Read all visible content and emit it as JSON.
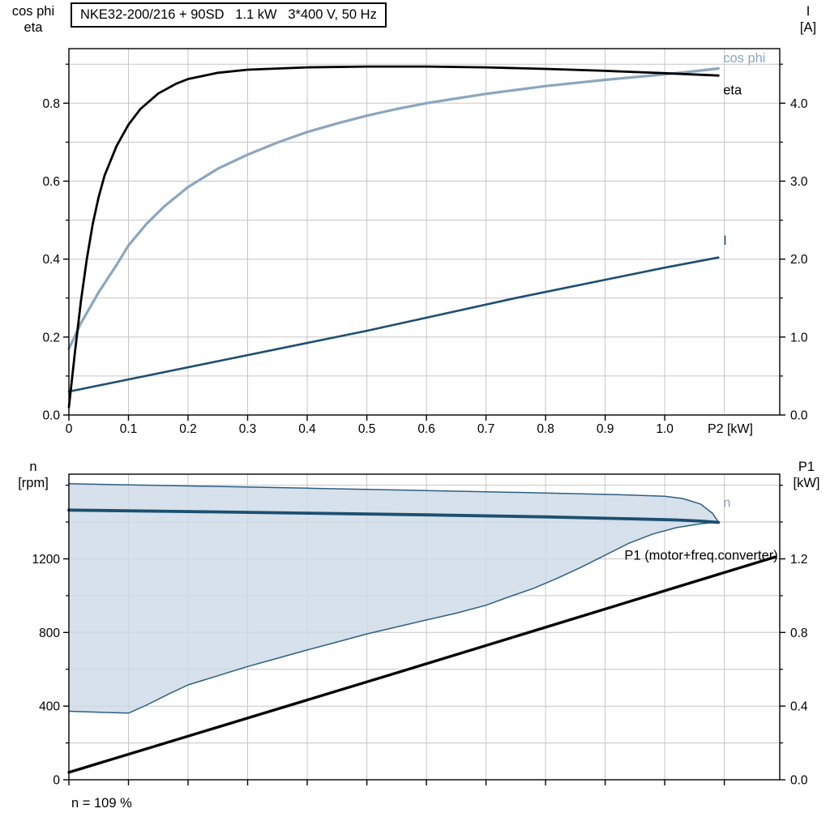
{
  "title_box": "NKE32-200/216 + 90SD   1.1 kW   3*400 V, 50 Hz",
  "footer_note": "n = 109 %",
  "axis_corner_labels": {
    "top_left": [
      "cos phi",
      "eta"
    ],
    "top_right": [
      "I",
      "[A]"
    ],
    "bottom_left": [
      "n",
      "[rpm]"
    ],
    "bottom_right": [
      "P1",
      "[kW]"
    ]
  },
  "colors": {
    "eta": "#000000",
    "cos_phi": "#8ba6be",
    "current": "#1d4f70",
    "band_fill": "#ccdae6",
    "band_edge": "#2d5f82",
    "p1": "#000000",
    "grid": "#c6c6c6",
    "frame": "#000000"
  },
  "chart_data": [
    {
      "type": "line",
      "position": "top",
      "title": "NKE32-200/216 + 90SD   1.1 kW   3*400 V, 50 Hz",
      "x_axis": {
        "label": "P2 [kW]",
        "min": 0,
        "max": 1.193,
        "grid_step": 0.1,
        "tick_values": [
          0,
          0.1,
          0.2,
          0.3,
          0.4,
          0.5,
          0.6,
          0.7,
          0.8,
          0.9,
          1.0
        ],
        "tick_labels": [
          "0",
          "0.1",
          "0.2",
          "0.3",
          "0.4",
          "0.5",
          "0.6",
          "0.7",
          "0.8",
          "0.9",
          "1.0"
        ]
      },
      "y_left": {
        "label": "cos phi / eta",
        "min": 0,
        "max": 0.94,
        "grid_step": 0.1,
        "minor_step": 0.1,
        "tick_values": [
          0,
          0.2,
          0.4,
          0.6,
          0.8
        ],
        "tick_labels": [
          "0.0",
          "0.2",
          "0.4",
          "0.6",
          "0.8"
        ]
      },
      "y_right": {
        "label": "I [A]",
        "min": 0,
        "max": 4.7,
        "minor_step": 0.5,
        "tick_values": [
          0,
          1,
          2,
          3,
          4
        ],
        "tick_labels": [
          "0.0",
          "1.0",
          "2.0",
          "3.0",
          "4.0"
        ]
      },
      "series": [
        {
          "name": "I",
          "axis": "right",
          "color_key": "current",
          "width": 2.6,
          "points": [
            [
              0,
              0.3
            ],
            [
              0.25,
              0.69
            ],
            [
              0.5,
              1.08
            ],
            [
              0.75,
              1.5
            ],
            [
              1.0,
              1.89
            ],
            [
              1.09,
              2.02
            ]
          ]
        },
        {
          "name": "cos phi",
          "axis": "left",
          "color_key": "cos_phi",
          "width": 3.2,
          "points": [
            [
              0,
              0.17
            ],
            [
              0.02,
              0.235
            ],
            [
              0.05,
              0.315
            ],
            [
              0.08,
              0.385
            ],
            [
              0.1,
              0.435
            ],
            [
              0.13,
              0.49
            ],
            [
              0.16,
              0.535
            ],
            [
              0.2,
              0.585
            ],
            [
              0.25,
              0.632
            ],
            [
              0.3,
              0.668
            ],
            [
              0.35,
              0.699
            ],
            [
              0.4,
              0.726
            ],
            [
              0.45,
              0.748
            ],
            [
              0.5,
              0.768
            ],
            [
              0.55,
              0.785
            ],
            [
              0.6,
              0.8
            ],
            [
              0.65,
              0.812
            ],
            [
              0.7,
              0.824
            ],
            [
              0.75,
              0.834
            ],
            [
              0.8,
              0.844
            ],
            [
              0.85,
              0.852
            ],
            [
              0.9,
              0.86
            ],
            [
              0.95,
              0.867
            ],
            [
              1.0,
              0.874
            ],
            [
              1.05,
              0.882
            ],
            [
              1.09,
              0.889
            ]
          ]
        },
        {
          "name": "eta",
          "axis": "left",
          "color_key": "eta",
          "width": 2.8,
          "points": [
            [
              0,
              0.02
            ],
            [
              0.01,
              0.16
            ],
            [
              0.02,
              0.29
            ],
            [
              0.03,
              0.4
            ],
            [
              0.04,
              0.49
            ],
            [
              0.05,
              0.56
            ],
            [
              0.06,
              0.615
            ],
            [
              0.08,
              0.69
            ],
            [
              0.1,
              0.745
            ],
            [
              0.12,
              0.785
            ],
            [
              0.15,
              0.825
            ],
            [
              0.18,
              0.85
            ],
            [
              0.2,
              0.862
            ],
            [
              0.25,
              0.878
            ],
            [
              0.3,
              0.886
            ],
            [
              0.4,
              0.892
            ],
            [
              0.5,
              0.894
            ],
            [
              0.6,
              0.894
            ],
            [
              0.7,
              0.892
            ],
            [
              0.8,
              0.888
            ],
            [
              0.9,
              0.883
            ],
            [
              1.0,
              0.877
            ],
            [
              1.09,
              0.871
            ]
          ]
        }
      ],
      "inline_labels": [
        {
          "text": "cos phi",
          "x": 1.098,
          "y": 0.905,
          "color_key": "cos_phi",
          "anchor": "start"
        },
        {
          "text": "eta",
          "x": 1.098,
          "y": 0.822,
          "color_key": "eta",
          "anchor": "start"
        },
        {
          "text": "I",
          "x": 1.098,
          "y": 0.437,
          "color_key": "current",
          "anchor": "start"
        }
      ]
    },
    {
      "type": "line",
      "position": "bottom",
      "title": "",
      "x_axis": {
        "label": "",
        "min": 0,
        "max": 1.193,
        "grid_step": 0.1,
        "tick_values": [
          0,
          0.1,
          0.2,
          0.3,
          0.4,
          0.5,
          0.6,
          0.7,
          0.8,
          0.9,
          1.0,
          1.1
        ],
        "tick_labels": []
      },
      "y_left": {
        "label": "n [rpm]",
        "min": 0,
        "max": 1660,
        "grid_step": 200,
        "minor_step": 200,
        "tick_values": [
          0,
          400,
          800,
          1200
        ],
        "tick_labels": [
          "0",
          "400",
          "800",
          "1200"
        ]
      },
      "y_right": {
        "label": "P1 [kW]",
        "min": 0,
        "max": 1.66,
        "minor_step": 0.2,
        "tick_values": [
          0,
          0.4,
          0.8,
          1.2
        ],
        "tick_labels": [
          "0.0",
          "0.4",
          "0.8",
          "1.2"
        ]
      },
      "band": {
        "name": "speed-control-range",
        "upper": [
          [
            0,
            1608
          ],
          [
            0.2,
            1596
          ],
          [
            0.4,
            1584
          ],
          [
            0.6,
            1571
          ],
          [
            0.8,
            1558
          ],
          [
            0.92,
            1549
          ],
          [
            1.0,
            1540
          ],
          [
            1.03,
            1528
          ],
          [
            1.06,
            1498
          ],
          [
            1.08,
            1448
          ],
          [
            1.09,
            1400
          ]
        ],
        "lower": [
          [
            0,
            372
          ],
          [
            0.1,
            362
          ],
          [
            0.13,
            405
          ],
          [
            0.17,
            470
          ],
          [
            0.2,
            515
          ],
          [
            0.25,
            565
          ],
          [
            0.3,
            615
          ],
          [
            0.35,
            660
          ],
          [
            0.4,
            705
          ],
          [
            0.45,
            748
          ],
          [
            0.5,
            792
          ],
          [
            0.55,
            830
          ],
          [
            0.6,
            868
          ],
          [
            0.65,
            905
          ],
          [
            0.7,
            948
          ],
          [
            0.74,
            995
          ],
          [
            0.78,
            1040
          ],
          [
            0.82,
            1095
          ],
          [
            0.86,
            1155
          ],
          [
            0.9,
            1220
          ],
          [
            0.94,
            1285
          ],
          [
            0.98,
            1335
          ],
          [
            1.02,
            1370
          ],
          [
            1.06,
            1390
          ],
          [
            1.09,
            1400
          ]
        ]
      },
      "series": [
        {
          "name": "n",
          "axis": "left",
          "color_key": "current",
          "width": 3.8,
          "points": [
            [
              0,
              1465
            ],
            [
              0.2,
              1457
            ],
            [
              0.4,
              1448
            ],
            [
              0.6,
              1439
            ],
            [
              0.8,
              1428
            ],
            [
              0.95,
              1417
            ],
            [
              1.02,
              1411
            ],
            [
              1.06,
              1405
            ],
            [
              1.09,
              1398
            ]
          ]
        },
        {
          "name": "P1 (motor+freq.converter)",
          "axis": "right",
          "color_key": "p1",
          "width": 3.4,
          "points": [
            [
              0,
              0.04
            ],
            [
              0.6,
              0.63
            ],
            [
              1.185,
              1.21
            ]
          ]
        }
      ],
      "inline_labels": [
        {
          "text": "n",
          "x": 1.098,
          "y": 1482,
          "color_key": "cos_phi",
          "anchor": "start"
        },
        {
          "text": "P1 (motor+freq.converter)",
          "x": 1.19,
          "y": 1196,
          "color_key": "p1",
          "anchor": "end"
        }
      ]
    }
  ]
}
